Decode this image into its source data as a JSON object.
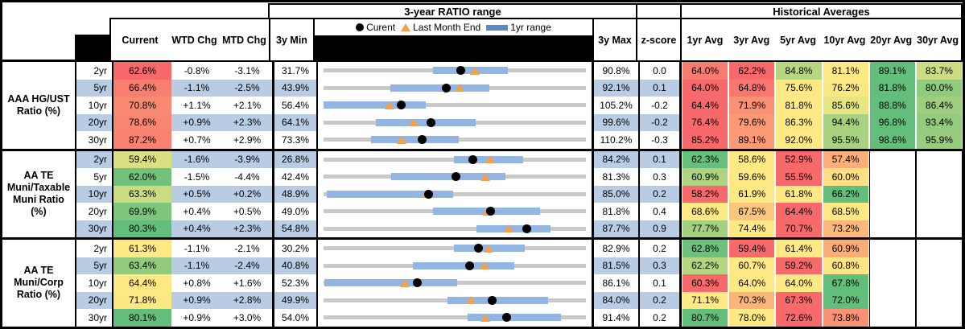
{
  "chart_data": {
    "type": "table",
    "titles": {
      "range": "3-year RATIO range",
      "historical": "Historical Averages"
    },
    "legend": {
      "current": "Curent",
      "last_month": "Last Month End",
      "range": "1yr range"
    },
    "columns": {
      "current": "Current",
      "wtd": "WTD Chg",
      "mtd": "MTD Chg",
      "min": "3y Min",
      "max": "3y Max",
      "z": "z-score",
      "avgs": [
        "1yr Avg",
        "3yr Avg",
        "5yr Avg",
        "10yr Avg",
        "20yr Avg",
        "30yr Avg"
      ]
    },
    "palette": {
      "alt_row_blue": "#B8CCE4",
      "range_bar_blue": "#92B5E2",
      "legend_bar_blue": "#5B87C3",
      "range_line_gray": "#C9C9C9",
      "marker_orange": "#F2A04C",
      "scale_red": "#F8696B",
      "scale_yellow": "#FFE984",
      "scale_green": "#63BE7B"
    },
    "groups": [
      {
        "label_lines": [
          "AAA HG/UST",
          "Ratio (%)"
        ],
        "rows": [
          {
            "tenor": "2yr",
            "current": "62.6%",
            "cc": "#F8696B",
            "wtd": "-0.8%",
            "mtd": "-3.1%",
            "min": "31.7%",
            "max": "90.8%",
            "z": "0.0",
            "chart": {
              "min": 31.7,
              "max": 90.8,
              "bar": [
                56.3,
                73.2
              ],
              "cur": 62.6,
              "lme": 65.7
            },
            "avgs": [
              [
                "64.0%",
                "#F87B70"
              ],
              [
                "62.2%",
                "#F8696B"
              ],
              [
                "84.8%",
                "#B7D680"
              ],
              [
                "81.1%",
                "#FFE984"
              ],
              [
                "89.1%",
                "#63BE7B"
              ],
              [
                "83.7%",
                "#CBDC82"
              ]
            ]
          },
          {
            "tenor": "5yr",
            "current": "66.4%",
            "cc": "#F87F70",
            "wtd": "-1.1%",
            "mtd": "-2.5%",
            "min": "43.9%",
            "max": "92.1%",
            "z": "0.1",
            "chart": {
              "min": 43.9,
              "max": 92.1,
              "bar": [
                56.2,
                74.3
              ],
              "cur": 66.4,
              "lme": 68.9
            },
            "avgs": [
              [
                "64.0%",
                "#F8696B"
              ],
              [
                "64.8%",
                "#F87770"
              ],
              [
                "75.6%",
                "#FFE984"
              ],
              [
                "76.2%",
                "#FAE883"
              ],
              [
                "81.8%",
                "#63BE7B"
              ],
              [
                "80.0%",
                "#8FCA7E"
              ]
            ]
          },
          {
            "tenor": "10yr",
            "current": "70.8%",
            "cc": "#F98A71",
            "wtd": "+1.1%",
            "mtd": "+2.1%",
            "min": "56.4%",
            "max": "105.2%",
            "z": "-0.2",
            "chart": {
              "min": 56.4,
              "max": 105.2,
              "bar": [
                56.4,
                75.4
              ],
              "cur": 70.8,
              "lme": 68.7
            },
            "avgs": [
              [
                "64.4%",
                "#F8696B"
              ],
              [
                "71.9%",
                "#FB9174"
              ],
              [
                "81.8%",
                "#FFE984"
              ],
              [
                "85.6%",
                "#E8E583"
              ],
              [
                "88.8%",
                "#63BE7B"
              ],
              [
                "86.4%",
                "#9FCE7F"
              ]
            ]
          },
          {
            "tenor": "20yr",
            "current": "78.6%",
            "cc": "#F98671",
            "wtd": "+0.9%",
            "mtd": "+2.3%",
            "min": "64.1%",
            "max": "99.6%",
            "z": "-0.2",
            "chart": {
              "min": 64.1,
              "max": 99.6,
              "bar": [
                71.2,
                84.7
              ],
              "cur": 78.6,
              "lme": 76.3
            },
            "avgs": [
              [
                "76.4%",
                "#F8696B"
              ],
              [
                "79.6%",
                "#FB9A75"
              ],
              [
                "86.3%",
                "#FFE984"
              ],
              [
                "94.4%",
                "#A8D280"
              ],
              [
                "96.8%",
                "#63BE7B"
              ],
              [
                "93.4%",
                "#95CB7E"
              ]
            ]
          },
          {
            "tenor": "30yr",
            "current": "87.2%",
            "cc": "#F98370",
            "wtd": "+0.7%",
            "mtd": "+2.9%",
            "min": "73.3%",
            "max": "110.2%",
            "z": "-0.3",
            "chart": {
              "min": 73.3,
              "max": 110.2,
              "bar": [
                80.0,
                92.3
              ],
              "cur": 87.2,
              "lme": 84.3
            },
            "avgs": [
              [
                "85.2%",
                "#F8696B"
              ],
              [
                "89.1%",
                "#FB9A75"
              ],
              [
                "92.0%",
                "#FFE984"
              ],
              [
                "95.5%",
                "#A9D280"
              ],
              [
                "98.6%",
                "#63BE7B"
              ],
              [
                "95.9%",
                "#98CC7E"
              ]
            ]
          }
        ]
      },
      {
        "label_lines": [
          "AA TE",
          "Muni/Taxable",
          "Muni Ratio",
          "(%)"
        ],
        "rows": [
          {
            "tenor": "2yr",
            "current": "59.4%",
            "cc": "#D9E082",
            "wtd": "-1.6%",
            "mtd": "-3.9%",
            "min": "26.8%",
            "max": "84.2%",
            "z": "0.1",
            "chart": {
              "min": 26.8,
              "max": 84.2,
              "bar": [
                55.3,
                70.4
              ],
              "cur": 59.4,
              "lme": 63.3
            },
            "avgs": [
              [
                "62.3%",
                "#66BF7B"
              ],
              [
                "58.6%",
                "#FFE984"
              ],
              [
                "52.9%",
                "#F8696B"
              ],
              [
                "57.4%",
                "#FCAF78"
              ],
              [
                "",
                ""
              ],
              [
                "",
                ""
              ]
            ]
          },
          {
            "tenor": "5yr",
            "current": "62.0%",
            "cc": "#73C27C",
            "wtd": "-1.5%",
            "mtd": "-4.4%",
            "min": "42.4%",
            "max": "81.3%",
            "z": "0.3",
            "chart": {
              "min": 42.4,
              "max": 81.3,
              "bar": [
                52.4,
                69.4
              ],
              "cur": 62.0,
              "lme": 66.4
            },
            "avgs": [
              [
                "60.9%",
                "#AFD380"
              ],
              [
                "59.6%",
                "#FFE984"
              ],
              [
                "55.5%",
                "#F8696B"
              ],
              [
                "60.0%",
                "#FEE083"
              ],
              [
                "",
                ""
              ],
              [
                "",
                ""
              ]
            ]
          },
          {
            "tenor": "10yr",
            "current": "63.3%",
            "cc": "#CADC81",
            "wtd": "+0.5%",
            "mtd": "+0.2%",
            "min": "48.9%",
            "max": "85.0%",
            "z": "0.2",
            "chart": {
              "min": 48.9,
              "max": 85.0,
              "bar": [
                49.3,
                66.7
              ],
              "cur": 63.3,
              "lme": 63.1
            },
            "avgs": [
              [
                "58.2%",
                "#F8696B"
              ],
              [
                "61.9%",
                "#FFE984"
              ],
              [
                "61.8%",
                "#FEE883"
              ],
              [
                "66.2%",
                "#63BE7B"
              ],
              [
                "",
                ""
              ],
              [
                "",
                ""
              ]
            ]
          },
          {
            "tenor": "20yr",
            "current": "69.9%",
            "cc": "#7FC67D",
            "wtd": "+0.4%",
            "mtd": "+0.5%",
            "min": "49.0%",
            "max": "81.8%",
            "z": "0.4",
            "chart": {
              "min": 49.0,
              "max": 81.8,
              "bar": [
                62.7,
                76.1
              ],
              "cur": 69.9,
              "lme": 69.4
            },
            "avgs": [
              [
                "68.6%",
                "#FFE984"
              ],
              [
                "67.5%",
                "#FDC67D"
              ],
              [
                "64.4%",
                "#F8696B"
              ],
              [
                "68.5%",
                "#FEE883"
              ],
              [
                "",
                ""
              ],
              [
                "",
                ""
              ]
            ]
          },
          {
            "tenor": "30yr",
            "current": "80.3%",
            "cc": "#63BE7B",
            "wtd": "+0.4%",
            "mtd": "+2.3%",
            "min": "54.8%",
            "max": "87.7%",
            "z": "0.9",
            "chart": {
              "min": 54.8,
              "max": 87.7,
              "bar": [
                74.0,
                83.3
              ],
              "cur": 80.3,
              "lme": 78.0
            },
            "avgs": [
              [
                "77.7%",
                "#A5D07F"
              ],
              [
                "74.4%",
                "#FFE984"
              ],
              [
                "70.7%",
                "#F8696B"
              ],
              [
                "73.2%",
                "#FCB97A"
              ],
              [
                "",
                ""
              ],
              [
                "",
                ""
              ]
            ]
          }
        ]
      },
      {
        "label_lines": [
          "AA TE",
          "Muni/Corp",
          "Ratio (%)"
        ],
        "rows": [
          {
            "tenor": "2yr",
            "current": "61.3%",
            "cc": "#FFE984",
            "wtd": "-1.1%",
            "mtd": "-2.1%",
            "min": "30.2%",
            "max": "82.9%",
            "z": "0.2",
            "chart": {
              "min": 30.2,
              "max": 82.9,
              "bar": [
                56.4,
                70.6
              ],
              "cur": 61.3,
              "lme": 63.4
            },
            "avgs": [
              [
                "62.8%",
                "#6EC17C"
              ],
              [
                "59.4%",
                "#F8696B"
              ],
              [
                "61.4%",
                "#FFE984"
              ],
              [
                "60.9%",
                "#FBAD77"
              ],
              [
                "",
                ""
              ],
              [
                "",
                ""
              ]
            ]
          },
          {
            "tenor": "5yr",
            "current": "63.4%",
            "cc": "#92CA7E",
            "wtd": "-1.1%",
            "mtd": "-2.4%",
            "min": "40.8%",
            "max": "81.5%",
            "z": "0.3",
            "chart": {
              "min": 40.8,
              "max": 81.5,
              "bar": [
                54.7,
                70.4
              ],
              "cur": 63.4,
              "lme": 65.8
            },
            "avgs": [
              [
                "62.2%",
                "#B5D580"
              ],
              [
                "60.7%",
                "#FFE984"
              ],
              [
                "59.2%",
                "#F8696B"
              ],
              [
                "60.8%",
                "#FEE583"
              ],
              [
                "",
                ""
              ],
              [
                "",
                ""
              ]
            ]
          },
          {
            "tenor": "10yr",
            "current": "64.4%",
            "cc": "#FFE984",
            "wtd": "+0.8%",
            "mtd": "+1.6%",
            "min": "52.3%",
            "max": "86.1%",
            "z": "0.1",
            "chart": {
              "min": 52.3,
              "max": 86.1,
              "bar": [
                52.4,
                69.5
              ],
              "cur": 64.4,
              "lme": 62.8
            },
            "avgs": [
              [
                "60.3%",
                "#F8696B"
              ],
              [
                "64.0%",
                "#FFE984"
              ],
              [
                "64.0%",
                "#FFE984"
              ],
              [
                "67.8%",
                "#63BE7B"
              ],
              [
                "",
                ""
              ],
              [
                "",
                ""
              ]
            ]
          },
          {
            "tenor": "20yr",
            "current": "71.8%",
            "cc": "#FBE883",
            "wtd": "+0.9%",
            "mtd": "+2.8%",
            "min": "49.9%",
            "max": "84.0%",
            "z": "0.2",
            "chart": {
              "min": 49.9,
              "max": 84.0,
              "bar": [
                66.0,
                79.1
              ],
              "cur": 71.8,
              "lme": 69.0
            },
            "avgs": [
              [
                "71.1%",
                "#FFE984"
              ],
              [
                "70.3%",
                "#FCB579"
              ],
              [
                "67.3%",
                "#F8696B"
              ],
              [
                "72.0%",
                "#63BE7B"
              ],
              [
                "",
                ""
              ],
              [
                "",
                ""
              ]
            ]
          },
          {
            "tenor": "30yr",
            "current": "80.1%",
            "cc": "#63BE7B",
            "wtd": "+0.9%",
            "mtd": "+3.0%",
            "min": "54.0%",
            "max": "91.4%",
            "z": "0.2",
            "chart": {
              "min": 54.0,
              "max": 91.4,
              "bar": [
                74.5,
                87.9
              ],
              "cur": 80.1,
              "lme": 77.1
            },
            "avgs": [
              [
                "80.7%",
                "#63BE7B"
              ],
              [
                "78.0%",
                "#FFE984"
              ],
              [
                "72.6%",
                "#F8696B"
              ],
              [
                "73.8%",
                "#FA9273"
              ],
              [
                "",
                ""
              ],
              [
                "",
                ""
              ]
            ]
          }
        ]
      }
    ]
  }
}
